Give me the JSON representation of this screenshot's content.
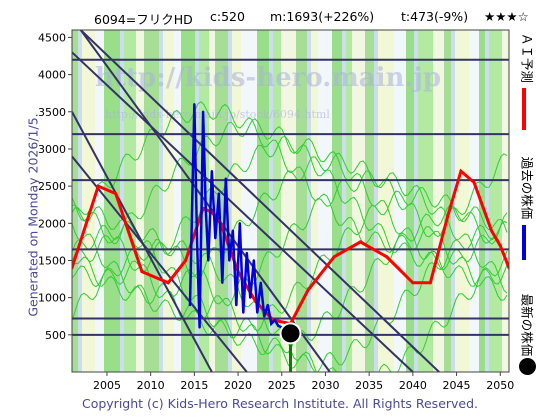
{
  "header": {
    "stock": "6094=フリクHD",
    "current": "c:520",
    "max": "m:1693(+226%)",
    "target": "t:473(-9%)",
    "rating": "★★★☆"
  },
  "generated": "Generated on Monday 2026/1/5.",
  "watermarks": [
    "http://kids-hero.main.jp",
    "http://kids-hero.main.jp/stock/6094.html"
  ],
  "legend": {
    "ai": "ＡＩ予測",
    "past": "過去の株価",
    "latest": "最新の株価"
  },
  "colors": {
    "ai": "#ff0000",
    "past": "#0000dd",
    "latest": "#000000",
    "band": "#33cc33",
    "background": "#ccddee",
    "line": "#333366"
  },
  "copyright": "Copyright (c) Kids-Hero Research Institute. All Rights Reserved.",
  "chart_data": {
    "type": "line",
    "xlim": [
      2001,
      2051
    ],
    "ylim": [
      0,
      4600
    ],
    "xticks": [
      2005,
      2010,
      2015,
      2020,
      2025,
      2030,
      2035,
      2040,
      2045,
      2050
    ],
    "yticks": [
      500,
      1000,
      1500,
      2000,
      2500,
      3000,
      3500,
      4000,
      4500
    ],
    "hlines": [
      500,
      720,
      1650,
      2580,
      3200,
      4200
    ],
    "diagonals": [
      {
        "x": [
          2002,
          2030.5
        ],
        "y": [
          4600,
          0
        ]
      },
      {
        "x": [
          2002,
          2043
        ],
        "y": [
          4600,
          0
        ]
      },
      {
        "x": [
          2001,
          2017
        ],
        "y": [
          3500,
          0
        ]
      },
      {
        "x": [
          2001,
          2040
        ],
        "y": [
          4300,
          0
        ]
      },
      {
        "x": [
          2001,
          2021
        ],
        "y": [
          2900,
          0
        ]
      }
    ],
    "past_series": {
      "name": "過去の株価",
      "x": [
        2014.5,
        2015,
        2015.3,
        2015.6,
        2016,
        2016.3,
        2016.6,
        2017,
        2017.4,
        2017.8,
        2018.2,
        2018.6,
        2019,
        2019.4,
        2019.8,
        2020.2,
        2020.6,
        2021,
        2021.4,
        2021.8,
        2022.2,
        2022.6,
        2023,
        2023.4,
        2023.8,
        2024.2,
        2024.6,
        2025,
        2025.5,
        2026
      ],
      "y": [
        900,
        3600,
        1800,
        600,
        3500,
        2200,
        1500,
        2700,
        1800,
        2400,
        1200,
        2600,
        1500,
        1900,
        900,
        2000,
        800,
        1600,
        1000,
        1500,
        800,
        1200,
        750,
        900,
        650,
        700,
        620,
        600,
        560,
        520
      ]
    },
    "ai_series": {
      "name": "ＡＩ予測",
      "x": [
        2001,
        2004,
        2006,
        2009,
        2012,
        2014,
        2016,
        2017,
        2018,
        2020,
        2022,
        2024,
        2026,
        2028,
        2031,
        2034,
        2037,
        2040,
        2042,
        2044,
        2045.5,
        2047,
        2049,
        2050,
        2051
      ],
      "y": [
        1400,
        2500,
        2400,
        1350,
        1200,
        1500,
        2200,
        2150,
        2000,
        1350,
        950,
        700,
        650,
        1100,
        1550,
        1750,
        1550,
        1200,
        1200,
        2100,
        2700,
        2550,
        1900,
        1700,
        1400
      ]
    },
    "latest_point": {
      "name": "最新の株価",
      "x": 2026,
      "y": 520
    }
  }
}
